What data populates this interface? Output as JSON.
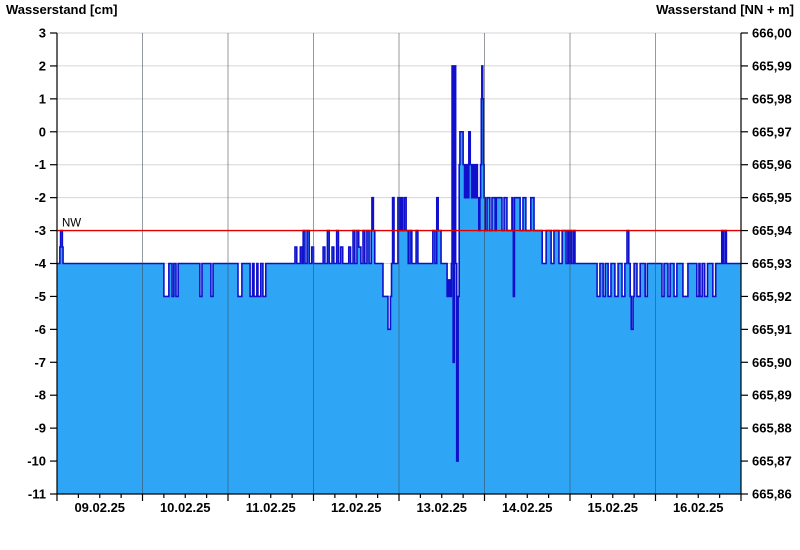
{
  "chart_data": {
    "type": "area",
    "description": "Stepped water-level hydrograph, blue area with dark blue step line, red low-water reference line",
    "y_left": {
      "label": "Wasserstand [cm]",
      "max": 3,
      "min": -11,
      "step": 1
    },
    "y_right": {
      "label": "Wasserstand [NN + m]",
      "max": 666.0,
      "min": 665.86,
      "step": 0.01,
      "offset_at_0cm": 665.97,
      "decimal_separator": ","
    },
    "x_axis": {
      "day_labels": [
        "09.02.25",
        "10.02.25",
        "11.02.25",
        "12.02.25",
        "13.02.25",
        "14.02.25",
        "15.02.25",
        "16.02.25"
      ],
      "hours_total": 192,
      "major_tick_hours": 24,
      "minor_tick_hours": 6,
      "grid_on_day_boundaries": true
    },
    "reference_line": {
      "label": "NW",
      "value_cm": -3,
      "value_m": 665.94
    },
    "series": {
      "name": "Wasserstand",
      "unit": "cm",
      "steps": [
        [
          0,
          -4
        ],
        [
          0.8,
          -3.5
        ],
        [
          1.0,
          -3
        ],
        [
          1.5,
          -3.5
        ],
        [
          1.7,
          -4
        ],
        [
          30.0,
          -5
        ],
        [
          31.4,
          -4
        ],
        [
          32.3,
          -5
        ],
        [
          32.8,
          -4
        ],
        [
          33.4,
          -5
        ],
        [
          34.0,
          -4
        ],
        [
          40.1,
          -5
        ],
        [
          40.7,
          -4
        ],
        [
          43.2,
          -5
        ],
        [
          43.8,
          -4
        ],
        [
          50.8,
          -5
        ],
        [
          51.9,
          -4
        ],
        [
          54.2,
          -5
        ],
        [
          54.9,
          -4
        ],
        [
          55.3,
          -5
        ],
        [
          56.1,
          -4
        ],
        [
          56.4,
          -5
        ],
        [
          57.2,
          -4
        ],
        [
          57.8,
          -5
        ],
        [
          58.6,
          -4
        ],
        [
          66.8,
          -3.5
        ],
        [
          67.3,
          -4
        ],
        [
          68.3,
          -3.5
        ],
        [
          68.8,
          -4
        ],
        [
          69.1,
          -3
        ],
        [
          69.6,
          -4
        ],
        [
          70.2,
          -3
        ],
        [
          70.8,
          -4
        ],
        [
          71.5,
          -3.5
        ],
        [
          72.0,
          -4
        ],
        [
          74.7,
          -3.5
        ],
        [
          75.2,
          -4
        ],
        [
          75.9,
          -3
        ],
        [
          76.4,
          -4
        ],
        [
          77.2,
          -3.5
        ],
        [
          77.7,
          -4
        ],
        [
          78.5,
          -3
        ],
        [
          79.0,
          -4
        ],
        [
          79.6,
          -3.5
        ],
        [
          80.2,
          -4
        ],
        [
          81.9,
          -3.5
        ],
        [
          82.4,
          -4
        ],
        [
          83.1,
          -3
        ],
        [
          83.6,
          -4
        ],
        [
          84.2,
          -3
        ],
        [
          84.7,
          -3.5
        ],
        [
          85.3,
          -4
        ],
        [
          85.9,
          -3
        ],
        [
          86.4,
          -4
        ],
        [
          87.0,
          -3
        ],
        [
          87.6,
          -4
        ],
        [
          88.2,
          -3
        ],
        [
          88.4,
          -2
        ],
        [
          88.8,
          -3
        ],
        [
          89.2,
          -4
        ],
        [
          91.5,
          -5
        ],
        [
          92.9,
          -6
        ],
        [
          93.6,
          -5
        ],
        [
          93.9,
          -4
        ],
        [
          94.2,
          -2
        ],
        [
          94.6,
          -4
        ],
        [
          95.7,
          -2
        ],
        [
          96.2,
          -3
        ],
        [
          96.6,
          -2
        ],
        [
          97.0,
          -3
        ],
        [
          97.5,
          -2
        ],
        [
          98.0,
          -3
        ],
        [
          98.6,
          -4
        ],
        [
          99.1,
          -3
        ],
        [
          99.6,
          -4
        ],
        [
          100.8,
          -3
        ],
        [
          101.3,
          -4
        ],
        [
          105.5,
          -3
        ],
        [
          106.1,
          -4
        ],
        [
          106.6,
          -2
        ],
        [
          107.0,
          -3
        ],
        [
          107.8,
          -4
        ],
        [
          109.5,
          -5
        ],
        [
          109.9,
          -4.5
        ],
        [
          110.3,
          -5
        ],
        [
          110.7,
          -4
        ],
        [
          110.9,
          2
        ],
        [
          111.2,
          -7
        ],
        [
          111.5,
          2
        ],
        [
          111.9,
          -4
        ],
        [
          112.2,
          -10
        ],
        [
          112.6,
          -5
        ],
        [
          112.9,
          -1
        ],
        [
          113.1,
          0
        ],
        [
          114.0,
          -1
        ],
        [
          114.4,
          -2
        ],
        [
          114.8,
          -1
        ],
        [
          115.2,
          -2
        ],
        [
          115.6,
          0
        ],
        [
          116.0,
          -1
        ],
        [
          116.4,
          -2
        ],
        [
          116.8,
          -1
        ],
        [
          117.2,
          -2
        ],
        [
          117.6,
          -1
        ],
        [
          118.0,
          -2
        ],
        [
          118.4,
          -3
        ],
        [
          118.7,
          -2
        ],
        [
          118.9,
          -1
        ],
        [
          119.1,
          1
        ],
        [
          119.25,
          2
        ],
        [
          119.5,
          1
        ],
        [
          119.7,
          -1
        ],
        [
          119.9,
          -2
        ],
        [
          120.2,
          -3
        ],
        [
          120.7,
          -2
        ],
        [
          121.5,
          -3
        ],
        [
          122.1,
          -2
        ],
        [
          123.0,
          -3
        ],
        [
          123.3,
          -2
        ],
        [
          124.9,
          -3
        ],
        [
          125.5,
          -2
        ],
        [
          126.3,
          -3
        ],
        [
          127.7,
          -2
        ],
        [
          127.9,
          -3
        ],
        [
          128.1,
          -5
        ],
        [
          128.4,
          -2
        ],
        [
          130.0,
          -3
        ],
        [
          130.8,
          -2
        ],
        [
          131.6,
          -3
        ],
        [
          133.0,
          -2
        ],
        [
          133.9,
          -3
        ],
        [
          136.2,
          -4
        ],
        [
          137.3,
          -3
        ],
        [
          138.7,
          -4
        ],
        [
          139.5,
          -3
        ],
        [
          140.9,
          -4
        ],
        [
          141.8,
          -3
        ],
        [
          142.9,
          -4
        ],
        [
          143.4,
          -3
        ],
        [
          143.8,
          -4
        ],
        [
          144.2,
          -3
        ],
        [
          144.5,
          -4
        ],
        [
          145.0,
          -3
        ],
        [
          145.4,
          -4
        ],
        [
          151.6,
          -5
        ],
        [
          152.4,
          -4
        ],
        [
          153.3,
          -5
        ],
        [
          153.9,
          -4
        ],
        [
          154.7,
          -5
        ],
        [
          155.5,
          -4
        ],
        [
          156.6,
          -5
        ],
        [
          157.5,
          -4
        ],
        [
          158.6,
          -5
        ],
        [
          159.4,
          -4
        ],
        [
          160.0,
          -3
        ],
        [
          160.5,
          -4
        ],
        [
          160.9,
          -5
        ],
        [
          161.2,
          -6
        ],
        [
          161.7,
          -5
        ],
        [
          162.0,
          -4
        ],
        [
          162.8,
          -5
        ],
        [
          163.7,
          -4
        ],
        [
          165.1,
          -5
        ],
        [
          165.7,
          -4
        ],
        [
          169.8,
          -5
        ],
        [
          170.4,
          -4
        ],
        [
          171.5,
          -5
        ],
        [
          172.1,
          -4
        ],
        [
          173.2,
          -5
        ],
        [
          174.0,
          -4
        ],
        [
          175.7,
          -5
        ],
        [
          177.1,
          -4
        ],
        [
          179.6,
          -5
        ],
        [
          180.2,
          -4
        ],
        [
          180.5,
          -5
        ],
        [
          181.1,
          -4
        ],
        [
          181.8,
          -5
        ],
        [
          182.6,
          -4
        ],
        [
          184.1,
          -5
        ],
        [
          184.9,
          -4
        ],
        [
          186.6,
          -3
        ],
        [
          187.0,
          -4
        ],
        [
          187.5,
          -3
        ],
        [
          187.9,
          -4
        ]
      ]
    },
    "colors": {
      "area_fill": "#2fa5f5",
      "line": "#1010cc",
      "reference": "#dd0000",
      "h_grid": "#d6d6d6",
      "v_grid": "rgba(62,72,82,0.55)",
      "axis": "#000000",
      "text": "#000000",
      "background": "#ffffff"
    }
  }
}
